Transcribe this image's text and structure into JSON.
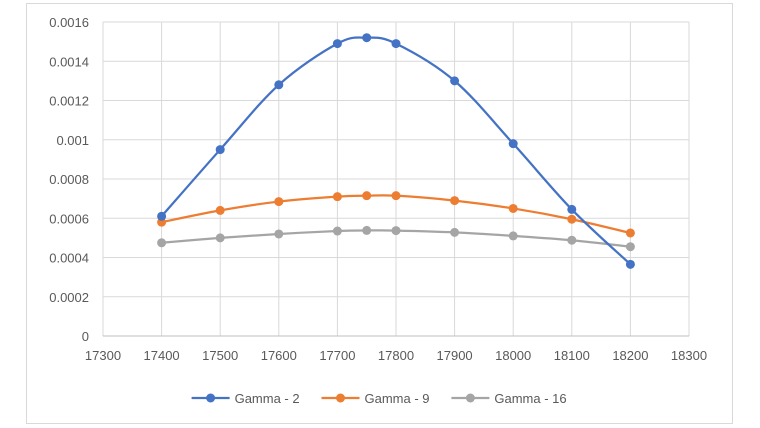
{
  "chart_data": {
    "type": "scatter",
    "title": "",
    "xlabel": "",
    "ylabel": "",
    "xlim": [
      17300,
      18300
    ],
    "ylim": [
      0,
      0.0016
    ],
    "x_ticks": [
      "17300",
      "17400",
      "17500",
      "17600",
      "17700",
      "17800",
      "17900",
      "18000",
      "18100",
      "18200",
      "18300"
    ],
    "y_ticks": [
      "0",
      "0.0002",
      "0.0004",
      "0.0006",
      "0.0008",
      "0.001",
      "0.0012",
      "0.0014",
      "0.0016"
    ],
    "grid": true,
    "smooth_lines": true,
    "legend_position": "bottom",
    "x": [
      17400,
      17500,
      17600,
      17700,
      17750,
      17800,
      17900,
      18000,
      18100,
      18200
    ],
    "series": [
      {
        "name": "Gamma - 2",
        "color": "#4472c4",
        "values": [
          0.00061,
          0.00095,
          0.00128,
          0.00149,
          0.00152,
          0.00149,
          0.0013,
          0.00098,
          0.000645,
          0.000365
        ]
      },
      {
        "name": "Gamma - 9",
        "color": "#ed7d31",
        "values": [
          0.00058,
          0.00064,
          0.000685,
          0.00071,
          0.000715,
          0.000715,
          0.00069,
          0.00065,
          0.000595,
          0.000525
        ]
      },
      {
        "name": "Gamma - 16",
        "color": "#a5a5a5",
        "values": [
          0.000475,
          0.0005,
          0.00052,
          0.000535,
          0.000538,
          0.000537,
          0.000528,
          0.00051,
          0.000488,
          0.000455
        ]
      }
    ]
  }
}
